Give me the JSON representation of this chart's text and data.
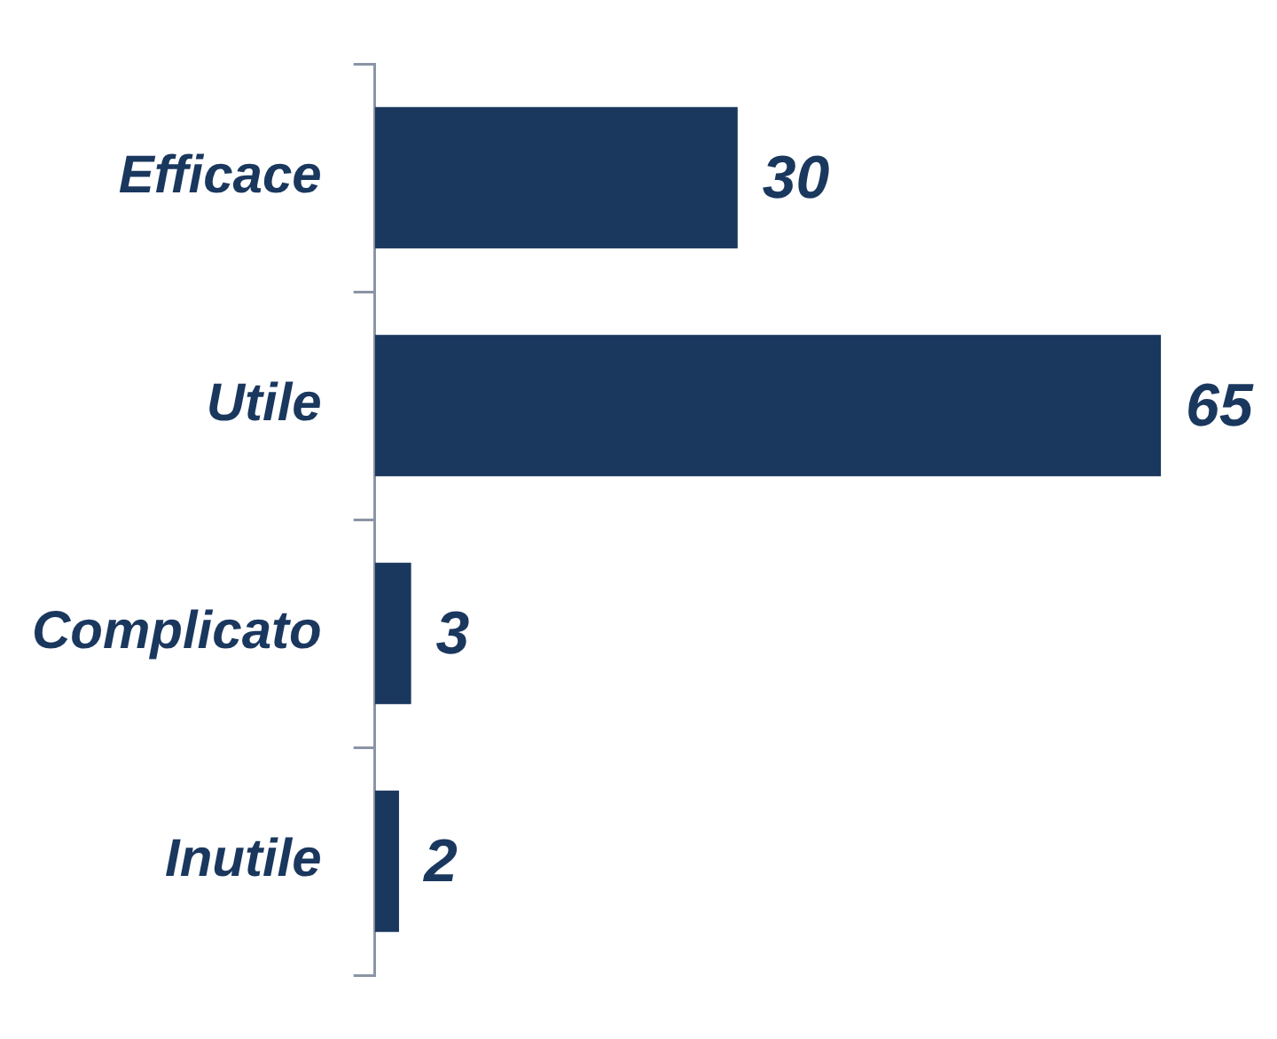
{
  "chart_data": {
    "type": "bar",
    "orientation": "horizontal",
    "categories": [
      "Efficace",
      "Utile",
      "Complicato",
      "Inutile"
    ],
    "values": [
      30,
      65,
      3,
      2
    ],
    "color": "#1a375e",
    "data_labels": true
  }
}
